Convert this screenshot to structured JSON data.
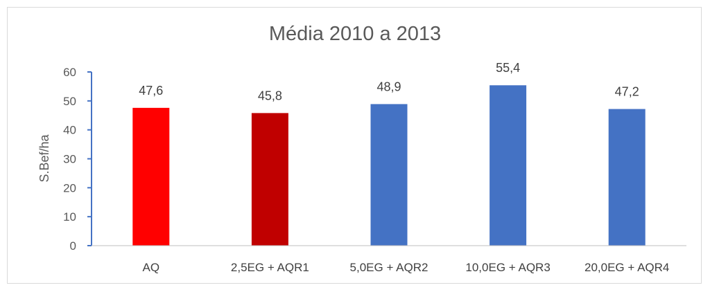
{
  "chart_data": {
    "type": "bar",
    "title": "Média 2010 a 2013",
    "xlabel": "",
    "ylabel": "S.Bef/ha",
    "ylim": [
      0,
      60
    ],
    "yticks": [
      "0",
      "10",
      "20",
      "30",
      "40",
      "50",
      "60"
    ],
    "categories": [
      "AQ",
      "2,5EG + AQR1",
      "5,0EG + AQR2",
      "10,0EG + AQR3",
      "20,0EG + AQR4"
    ],
    "values": [
      47.6,
      45.8,
      48.9,
      55.4,
      47.2
    ],
    "data_labels": [
      "47,6",
      "45,8",
      "48,9",
      "55,4",
      "47,2"
    ],
    "colors": [
      "#ff0000",
      "#c00000",
      "#4472c4",
      "#4472c4",
      "#4472c4"
    ],
    "grid": false,
    "legend": "none"
  }
}
